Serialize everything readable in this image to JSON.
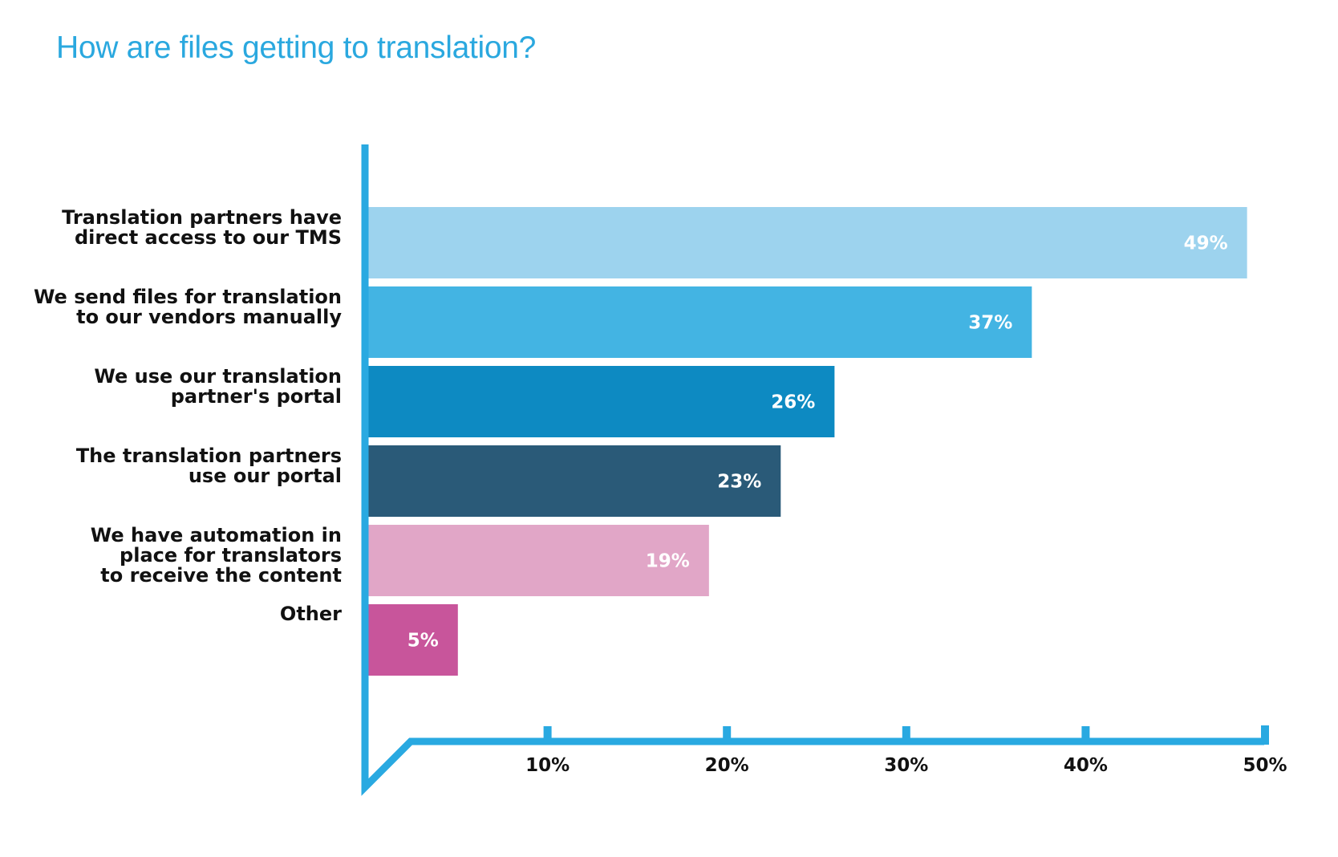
{
  "chart_data": {
    "type": "bar",
    "orientation": "horizontal",
    "title": "How are files getting to translation?",
    "categories": [
      [
        "Translation partners have",
        "direct access to our TMS"
      ],
      [
        "We send files for translation",
        "to our vendors manually"
      ],
      [
        "We use our translation",
        "partner's portal"
      ],
      [
        "The translation partners",
        "use our portal"
      ],
      [
        "We have automation in",
        "place for translators",
        "to receive the content"
      ],
      [
        "Other"
      ]
    ],
    "values": [
      49,
      37,
      26,
      23,
      19,
      5
    ],
    "value_labels": [
      "49%",
      "37%",
      "26%",
      "23%",
      "19%",
      "5%"
    ],
    "bar_colors": [
      "#9dd3ee",
      "#43b4e3",
      "#0d8ac2",
      "#2a5a78",
      "#e1a6c7",
      "#c8559b"
    ],
    "xlim": [
      0,
      50
    ],
    "x_ticks": [
      10,
      20,
      30,
      40,
      50
    ],
    "x_tick_labels": [
      "10%",
      "20%",
      "30%",
      "40%",
      "50%"
    ],
    "xlabel": "",
    "ylabel": "",
    "grid": false,
    "legend": "none"
  },
  "colors": {
    "title": "#2aa8df",
    "axis": "#29a9e1",
    "text": "#111111",
    "value_text": "#ffffff",
    "background": "#ffffff"
  }
}
